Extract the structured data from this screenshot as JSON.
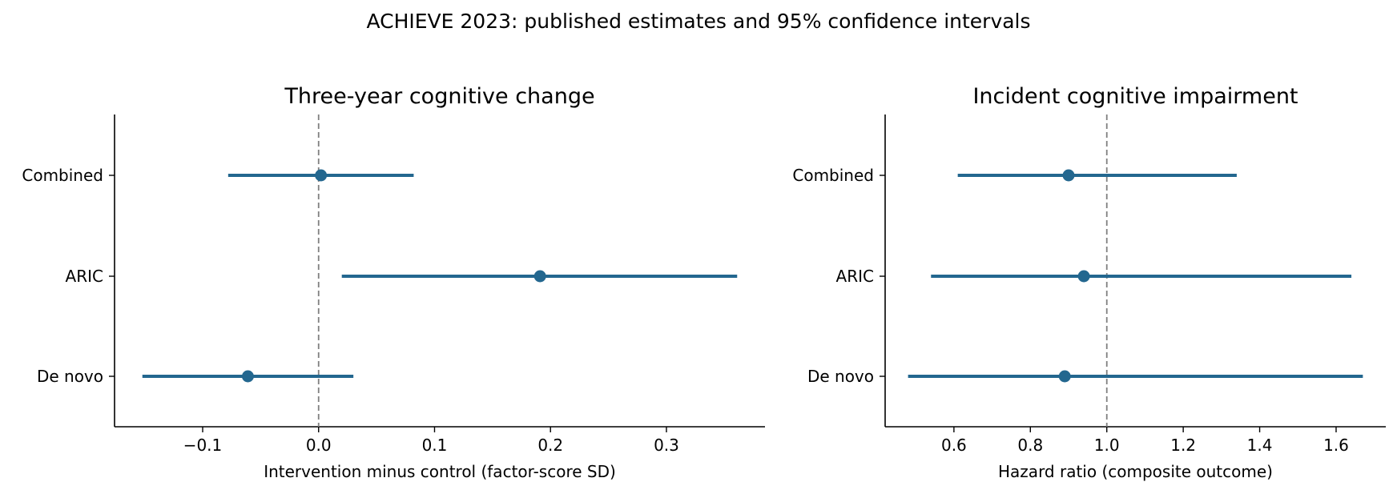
{
  "figure": {
    "suptitle": "ACHIEVE 2023: published estimates and 95% confidence intervals"
  },
  "colors": {
    "series": "#23678f",
    "reference_line": "#808080",
    "axis": "#000000"
  },
  "chart_data": [
    {
      "type": "forest",
      "title": "Three-year cognitive change",
      "xlabel": "Intervention minus control (factor-score SD)",
      "ylabel": "",
      "categories": [
        "Combined",
        "ARIC",
        "De novo"
      ],
      "estimates": [
        0.002,
        0.191,
        -0.061
      ],
      "ci_low": [
        -0.078,
        0.02,
        -0.152
      ],
      "ci_high": [
        0.082,
        0.361,
        0.03
      ],
      "reference_value": 0.0,
      "xlim": [
        -0.176,
        0.385
      ],
      "xticks": [
        -0.1,
        0.0,
        0.1,
        0.2,
        0.3
      ],
      "xtick_labels": [
        "−0.1",
        "0.0",
        "0.1",
        "0.2",
        "0.3"
      ],
      "grid": false
    },
    {
      "type": "forest",
      "title": "Incident cognitive impairment",
      "xlabel": "Hazard ratio (composite outcome)",
      "ylabel": "",
      "categories": [
        "Combined",
        "ARIC",
        "De novo"
      ],
      "estimates": [
        0.9,
        0.94,
        0.89
      ],
      "ci_low": [
        0.61,
        0.54,
        0.48
      ],
      "ci_high": [
        1.34,
        1.64,
        1.67
      ],
      "reference_value": 1.0,
      "xlim": [
        0.42,
        1.73
      ],
      "xticks": [
        0.6,
        0.8,
        1.0,
        1.2,
        1.4,
        1.6
      ],
      "xtick_labels": [
        "0.6",
        "0.8",
        "1.0",
        "1.2",
        "1.4",
        "1.6"
      ],
      "grid": false
    }
  ]
}
